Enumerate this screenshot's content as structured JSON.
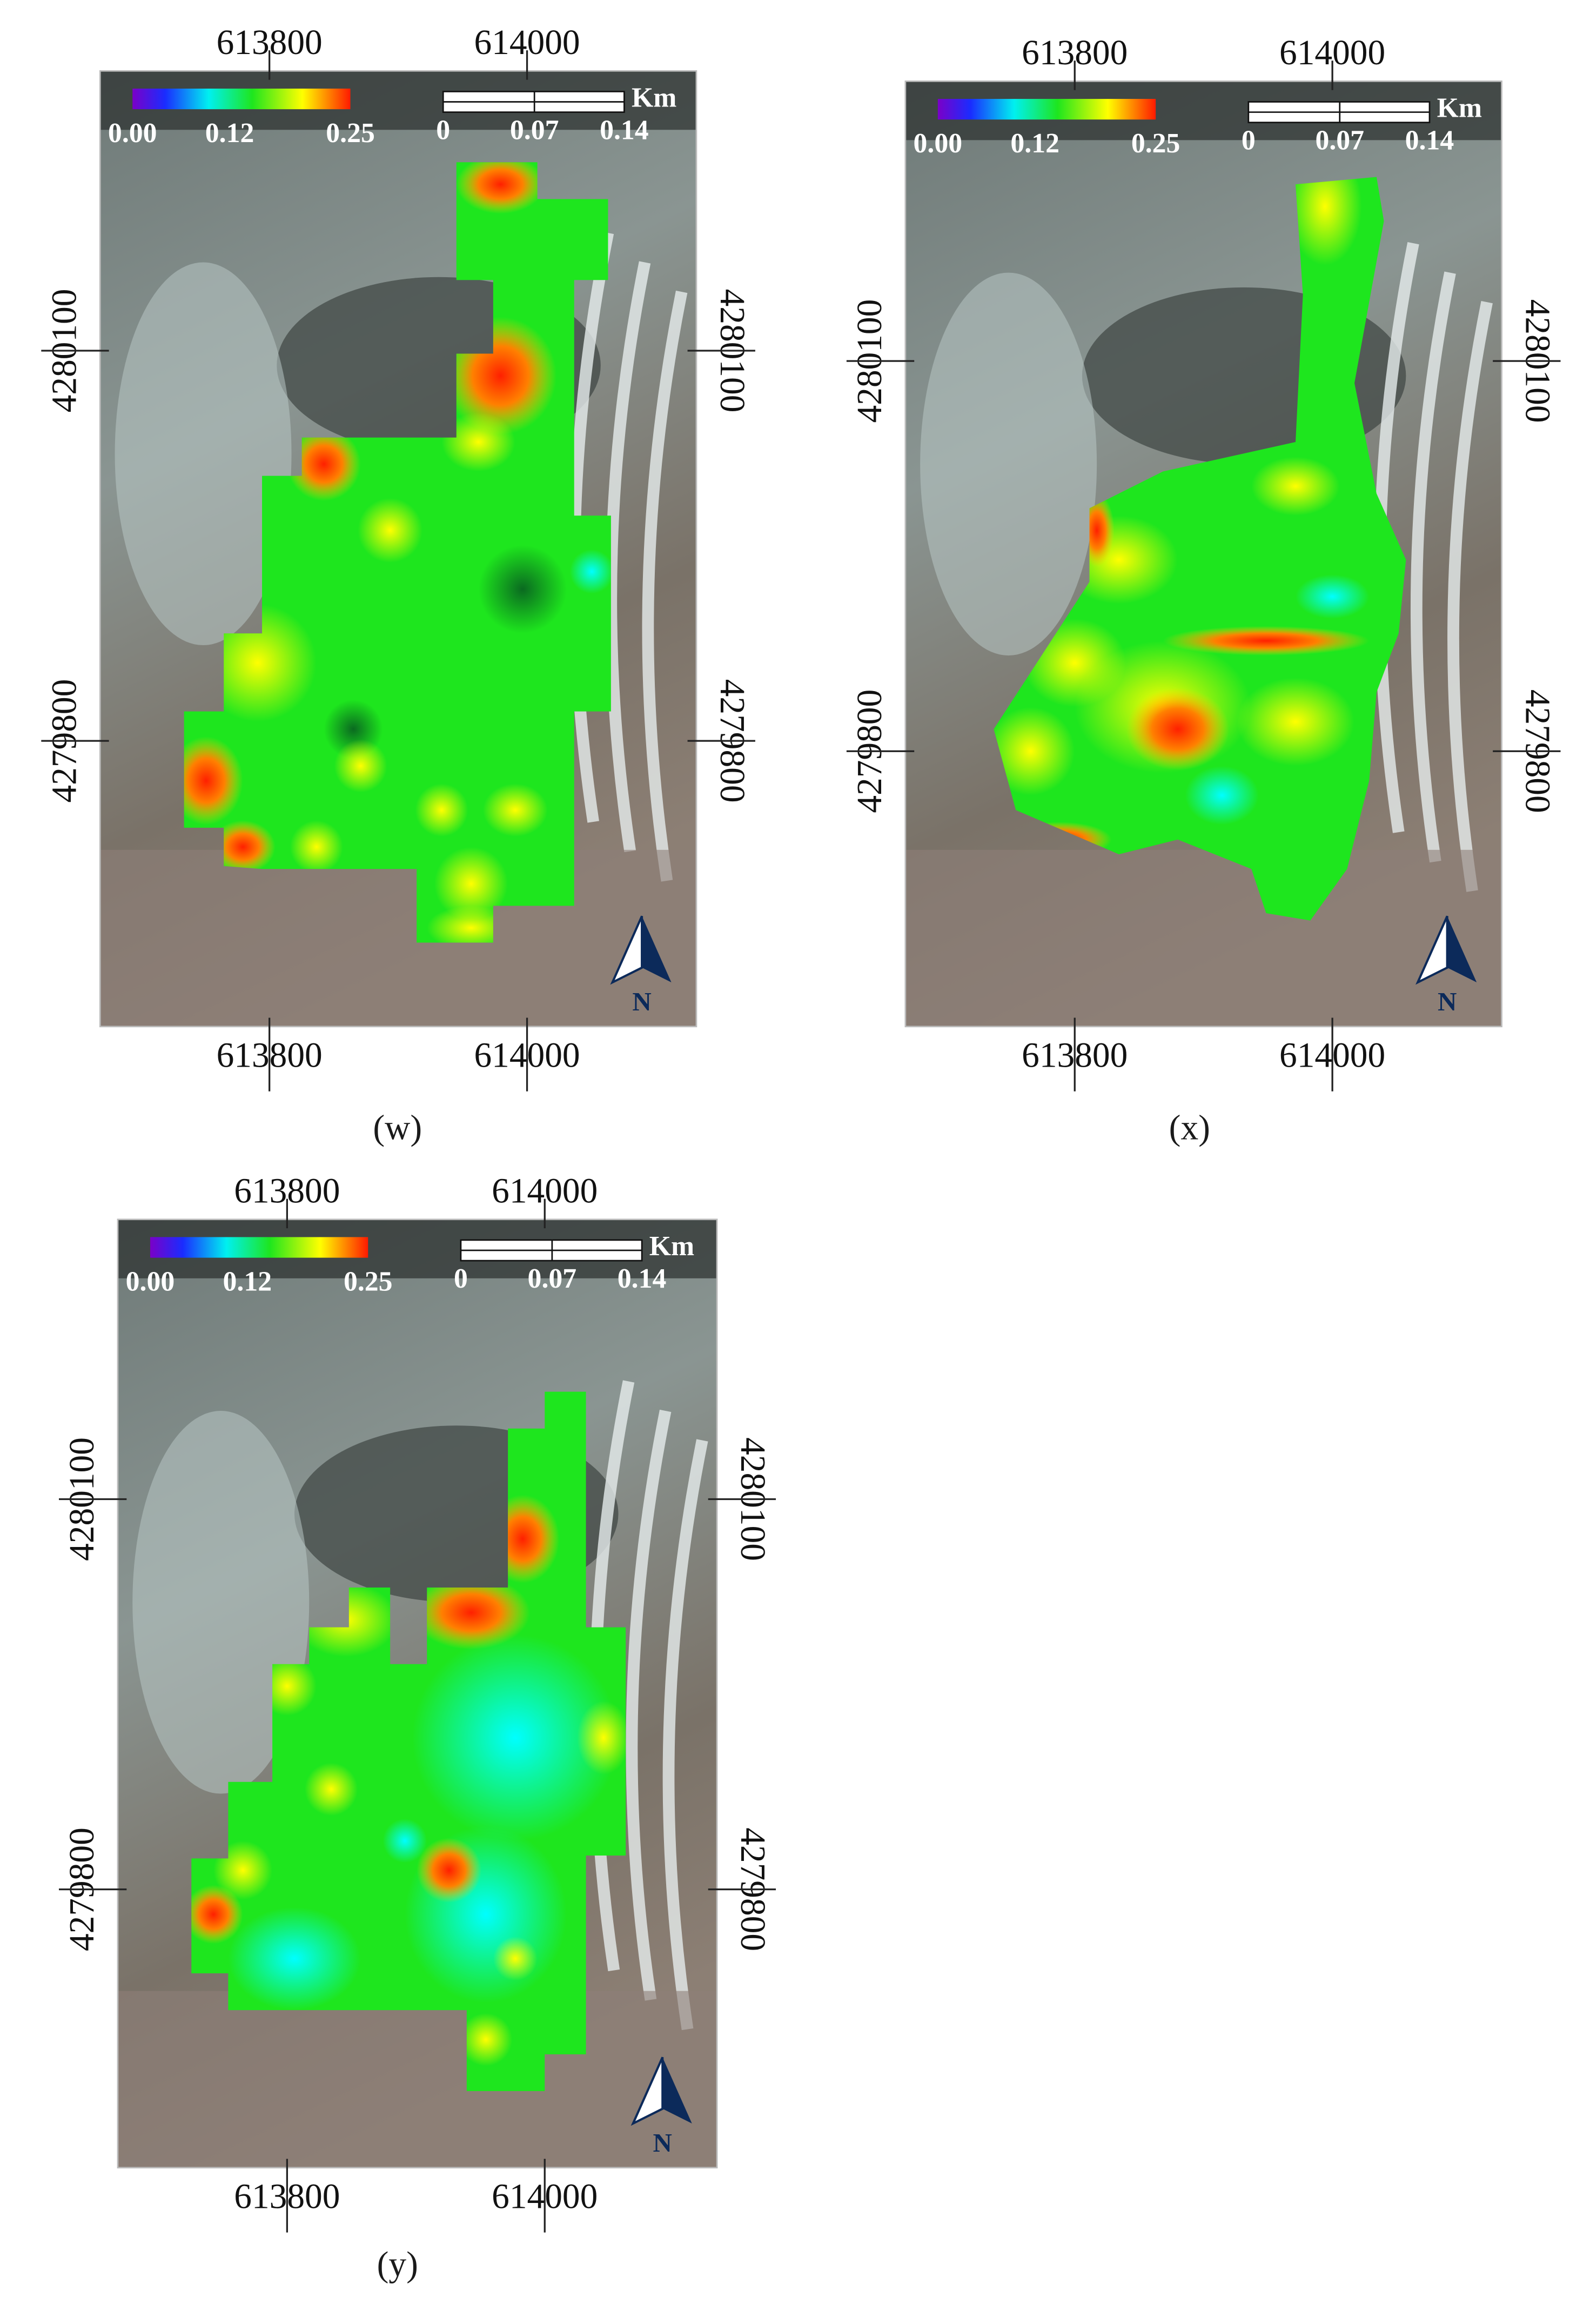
{
  "panels": [
    {
      "label": "(w)",
      "x_top": [
        "613800",
        "614000"
      ],
      "x_bottom": [
        "613800",
        "614000"
      ],
      "y_left": [
        "4280100",
        "4279800"
      ],
      "y_right": [
        "4280100",
        "4279800"
      ],
      "colorbar": [
        "0.00",
        "0.12",
        "0.25"
      ],
      "scale": [
        "0",
        "0.07",
        "0.14"
      ],
      "unit": "Km",
      "north": "N"
    },
    {
      "label": "(x)",
      "x_top": [
        "613800",
        "614000"
      ],
      "x_bottom": [
        "613800",
        "614000"
      ],
      "y_left": [
        "4280100",
        "4279800"
      ],
      "y_right": [
        "4280100",
        "4279800"
      ],
      "colorbar": [
        "0.00",
        "0.12",
        "0.25"
      ],
      "scale": [
        "0",
        "0.07",
        "0.14"
      ],
      "unit": "Km",
      "north": "N"
    },
    {
      "label": "(y)",
      "x_top": [
        "613800",
        "614000"
      ],
      "x_bottom": [
        "613800",
        "614000"
      ],
      "y_left": [
        "4280100",
        "4279800"
      ],
      "y_right": [
        "4280100",
        "4279800"
      ],
      "colorbar": [
        "0.00",
        "0.12",
        "0.25"
      ],
      "scale": [
        "0",
        "0.07",
        "0.14"
      ],
      "unit": "Km",
      "north": "N"
    }
  ]
}
